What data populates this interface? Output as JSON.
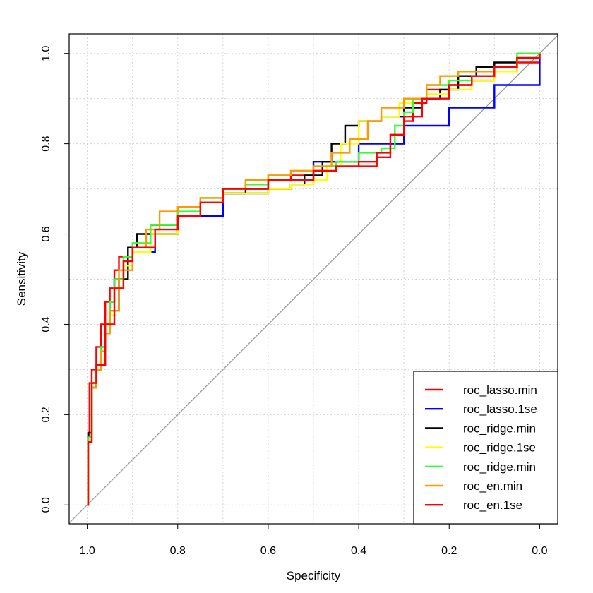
{
  "chart_data": {
    "type": "line",
    "title": "",
    "xlabel": "Specificity",
    "ylabel": "Sensitivity",
    "xlim": [
      1.0,
      0.0
    ],
    "ylim": [
      0.0,
      1.0
    ],
    "x_reversed": true,
    "grid": true,
    "legend_position": "bottom-right",
    "x_ticks": [
      "1.0",
      "0.8",
      "0.6",
      "0.4",
      "0.2",
      "0.0"
    ],
    "y_ticks": [
      "0.0",
      "0.2",
      "0.4",
      "0.6",
      "0.8",
      "1.0"
    ],
    "diagonal_reference": true,
    "series": [
      {
        "name": "roc_lasso.min",
        "color": "#ff0000",
        "x": [
          1.0,
          0.998,
          0.995,
          0.99,
          0.98,
          0.97,
          0.96,
          0.95,
          0.94,
          0.93,
          0.9,
          0.86,
          0.8,
          0.75,
          0.7,
          0.65,
          0.6,
          0.55,
          0.5,
          0.47,
          0.4,
          0.36,
          0.33,
          0.3,
          0.28,
          0.25,
          0.2,
          0.15,
          0.1,
          0.05,
          0.0
        ],
        "y": [
          0.0,
          0.15,
          0.27,
          0.3,
          0.35,
          0.4,
          0.45,
          0.48,
          0.52,
          0.55,
          0.57,
          0.6,
          0.64,
          0.67,
          0.7,
          0.71,
          0.72,
          0.73,
          0.74,
          0.75,
          0.75,
          0.77,
          0.8,
          0.85,
          0.89,
          0.92,
          0.93,
          0.94,
          0.96,
          0.98,
          1.0
        ]
      },
      {
        "name": "roc_lasso.1se",
        "color": "#0000ff",
        "x": [
          1.0,
          0.998,
          0.99,
          0.98,
          0.97,
          0.96,
          0.95,
          0.94,
          0.92,
          0.9,
          0.85,
          0.8,
          0.7,
          0.6,
          0.5,
          0.4,
          0.3,
          0.2,
          0.1,
          0.0
        ],
        "y": [
          0.0,
          0.15,
          0.27,
          0.3,
          0.35,
          0.4,
          0.45,
          0.5,
          0.54,
          0.56,
          0.6,
          0.64,
          0.69,
          0.72,
          0.76,
          0.8,
          0.84,
          0.88,
          0.93,
          1.0
        ]
      },
      {
        "name": "roc_ridge.min",
        "color": "#000000",
        "x": [
          1.0,
          0.998,
          0.99,
          0.98,
          0.97,
          0.96,
          0.95,
          0.93,
          0.91,
          0.89,
          0.86,
          0.8,
          0.75,
          0.7,
          0.65,
          0.6,
          0.55,
          0.52,
          0.48,
          0.46,
          0.43,
          0.4,
          0.35,
          0.3,
          0.26,
          0.22,
          0.18,
          0.14,
          0.1,
          0.05,
          0.0
        ],
        "y": [
          0.0,
          0.16,
          0.26,
          0.3,
          0.34,
          0.38,
          0.43,
          0.5,
          0.57,
          0.6,
          0.62,
          0.64,
          0.67,
          0.69,
          0.7,
          0.7,
          0.71,
          0.73,
          0.76,
          0.8,
          0.84,
          0.85,
          0.86,
          0.88,
          0.9,
          0.92,
          0.95,
          0.97,
          0.98,
          0.99,
          1.0
        ]
      },
      {
        "name": "roc_ridge.1se",
        "color": "#ffff00",
        "x": [
          1.0,
          0.998,
          0.99,
          0.98,
          0.97,
          0.96,
          0.95,
          0.94,
          0.92,
          0.9,
          0.86,
          0.8,
          0.75,
          0.7,
          0.65,
          0.6,
          0.55,
          0.5,
          0.47,
          0.44,
          0.4,
          0.35,
          0.31,
          0.28,
          0.25,
          0.2,
          0.15,
          0.1,
          0.05,
          0.0
        ],
        "y": [
          0.0,
          0.14,
          0.27,
          0.3,
          0.34,
          0.38,
          0.42,
          0.48,
          0.53,
          0.56,
          0.6,
          0.64,
          0.67,
          0.69,
          0.69,
          0.7,
          0.71,
          0.72,
          0.75,
          0.8,
          0.85,
          0.86,
          0.89,
          0.9,
          0.91,
          0.92,
          0.94,
          0.96,
          0.99,
          1.0
        ]
      },
      {
        "name": "roc_ridge.min",
        "color": "#33ff33",
        "x": [
          1.0,
          0.998,
          0.99,
          0.98,
          0.97,
          0.96,
          0.95,
          0.94,
          0.92,
          0.9,
          0.86,
          0.8,
          0.75,
          0.7,
          0.65,
          0.6,
          0.55,
          0.5,
          0.45,
          0.4,
          0.35,
          0.32,
          0.3,
          0.28,
          0.25,
          0.2,
          0.15,
          0.1,
          0.05,
          0.0
        ],
        "y": [
          0.0,
          0.15,
          0.27,
          0.3,
          0.35,
          0.4,
          0.45,
          0.5,
          0.55,
          0.58,
          0.62,
          0.65,
          0.68,
          0.7,
          0.71,
          0.73,
          0.74,
          0.75,
          0.76,
          0.78,
          0.79,
          0.84,
          0.87,
          0.9,
          0.93,
          0.94,
          0.95,
          0.97,
          1.0,
          1.0
        ]
      },
      {
        "name": "roc_en.min",
        "color": "#ff9900",
        "x": [
          1.0,
          0.998,
          0.99,
          0.98,
          0.97,
          0.96,
          0.95,
          0.93,
          0.9,
          0.87,
          0.84,
          0.8,
          0.75,
          0.7,
          0.65,
          0.6,
          0.55,
          0.5,
          0.46,
          0.42,
          0.38,
          0.35,
          0.3,
          0.25,
          0.22,
          0.18,
          0.14,
          0.1,
          0.05,
          0.0
        ],
        "y": [
          0.0,
          0.14,
          0.26,
          0.3,
          0.34,
          0.38,
          0.43,
          0.52,
          0.57,
          0.61,
          0.65,
          0.66,
          0.68,
          0.7,
          0.72,
          0.73,
          0.74,
          0.75,
          0.78,
          0.81,
          0.85,
          0.88,
          0.9,
          0.93,
          0.95,
          0.96,
          0.96,
          0.97,
          0.99,
          1.0
        ]
      },
      {
        "name": "roc_en.1se",
        "color": "#ff0000",
        "x": [
          1.0,
          0.998,
          0.99,
          0.98,
          0.96,
          0.94,
          0.92,
          0.9,
          0.85,
          0.8,
          0.75,
          0.7,
          0.6,
          0.5,
          0.45,
          0.4,
          0.36,
          0.33,
          0.3,
          0.26,
          0.2,
          0.15,
          0.1,
          0.05,
          0.0
        ],
        "y": [
          0.0,
          0.14,
          0.27,
          0.31,
          0.4,
          0.48,
          0.54,
          0.57,
          0.61,
          0.64,
          0.67,
          0.7,
          0.72,
          0.74,
          0.75,
          0.76,
          0.78,
          0.82,
          0.86,
          0.9,
          0.93,
          0.95,
          0.97,
          0.99,
          1.0
        ]
      }
    ]
  }
}
